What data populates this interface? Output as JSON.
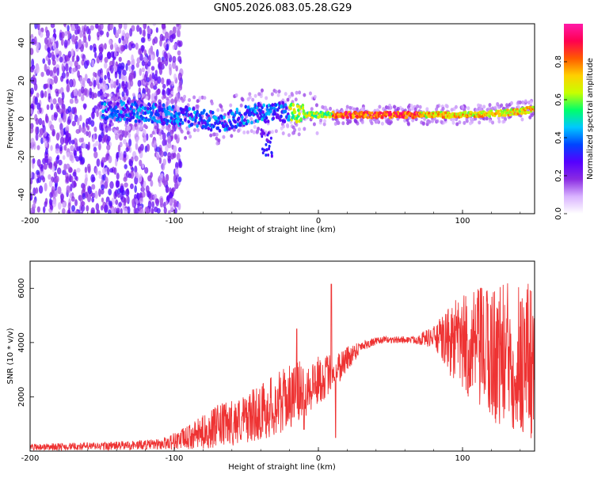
{
  "title": "GN05.2026.083.05.28.G29",
  "chart_data": [
    {
      "type": "heatmap",
      "title": "GN05.2026.083.05.28.G29",
      "xlabel": "Height of straight line (km)",
      "ylabel": "Frequency (Hz)",
      "xlim": [
        -200,
        150
      ],
      "ylim": [
        -50,
        50
      ],
      "xticks": [
        -200,
        -100,
        0,
        100
      ],
      "xtick_labels": [
        "-200",
        "-100",
        "0",
        "100"
      ],
      "yticks": [
        -40,
        -20,
        0,
        20,
        40
      ],
      "ytick_labels": [
        "-40",
        "-20",
        "0",
        "20",
        "40"
      ],
      "colorbar": {
        "label": "Normalized spectral amplitude",
        "range": [
          0,
          1
        ],
        "ticks": [
          0,
          0.2,
          0.4,
          0.6,
          0.8
        ],
        "tick_labels": [
          "0.0",
          "0.2",
          "0.4",
          "0.6",
          "0.8"
        ],
        "colors": [
          "#ffffff",
          "#d9b3ff",
          "#8a2be2",
          "#5500ff",
          "#0044ff",
          "#00c8ff",
          "#00ff6a",
          "#c8ff00",
          "#ffd000",
          "#ff5a00",
          "#ff0050",
          "#ff1aa8"
        ]
      },
      "ridge_center_hz": [
        {
          "x": -150,
          "y": 5
        },
        {
          "x": -120,
          "y": 3
        },
        {
          "x": -90,
          "y": 1
        },
        {
          "x": -70,
          "y": -2
        },
        {
          "x": -50,
          "y": 2
        },
        {
          "x": -30,
          "y": 4
        },
        {
          "x": -10,
          "y": 2
        },
        {
          "x": 0,
          "y": 2
        },
        {
          "x": 50,
          "y": 2
        },
        {
          "x": 100,
          "y": 2
        },
        {
          "x": 130,
          "y": 3
        },
        {
          "x": 150,
          "y": 5
        }
      ],
      "noise_region_km": [
        -200,
        -95
      ]
    },
    {
      "type": "line",
      "xlabel": "Height of straight line (km)",
      "ylabel": "SNR (10 * v/v)",
      "xlim": [
        -200,
        150
      ],
      "ylim": [
        0,
        7000
      ],
      "xticks": [
        -200,
        -100,
        0,
        100
      ],
      "xtick_labels": [
        "-200",
        "-100",
        "0",
        "100"
      ],
      "yticks": [
        2000,
        4000,
        6000
      ],
      "ytick_labels": [
        "2000",
        "4000",
        "6000"
      ],
      "color": "#ee3333",
      "envelope": [
        {
          "x": -200,
          "mean": 150,
          "amp": 120
        },
        {
          "x": -150,
          "mean": 180,
          "amp": 150
        },
        {
          "x": -110,
          "mean": 250,
          "amp": 200
        },
        {
          "x": -90,
          "mean": 500,
          "amp": 450
        },
        {
          "x": -70,
          "mean": 900,
          "amp": 800
        },
        {
          "x": -50,
          "mean": 1200,
          "amp": 900
        },
        {
          "x": -30,
          "mean": 1700,
          "amp": 1200
        },
        {
          "x": -10,
          "mean": 2300,
          "amp": 1100
        },
        {
          "x": 0,
          "mean": 2600,
          "amp": 900
        },
        {
          "x": 10,
          "mean": 2900,
          "amp": 700
        },
        {
          "x": 20,
          "mean": 3400,
          "amp": 500
        },
        {
          "x": 30,
          "mean": 3900,
          "amp": 200
        },
        {
          "x": 45,
          "mean": 4100,
          "amp": 120
        },
        {
          "x": 65,
          "mean": 4100,
          "amp": 130
        },
        {
          "x": 80,
          "mean": 4200,
          "amp": 400
        },
        {
          "x": 95,
          "mean": 4000,
          "amp": 1600
        },
        {
          "x": 120,
          "mean": 3600,
          "amp": 2600
        },
        {
          "x": 150,
          "mean": 3400,
          "amp": 3100
        }
      ],
      "spikes": [
        {
          "x": 9,
          "y": 6150
        },
        {
          "x": 12,
          "y": 500
        },
        {
          "x": -15,
          "y": 4500
        },
        {
          "x": -10,
          "y": 800
        }
      ]
    }
  ]
}
